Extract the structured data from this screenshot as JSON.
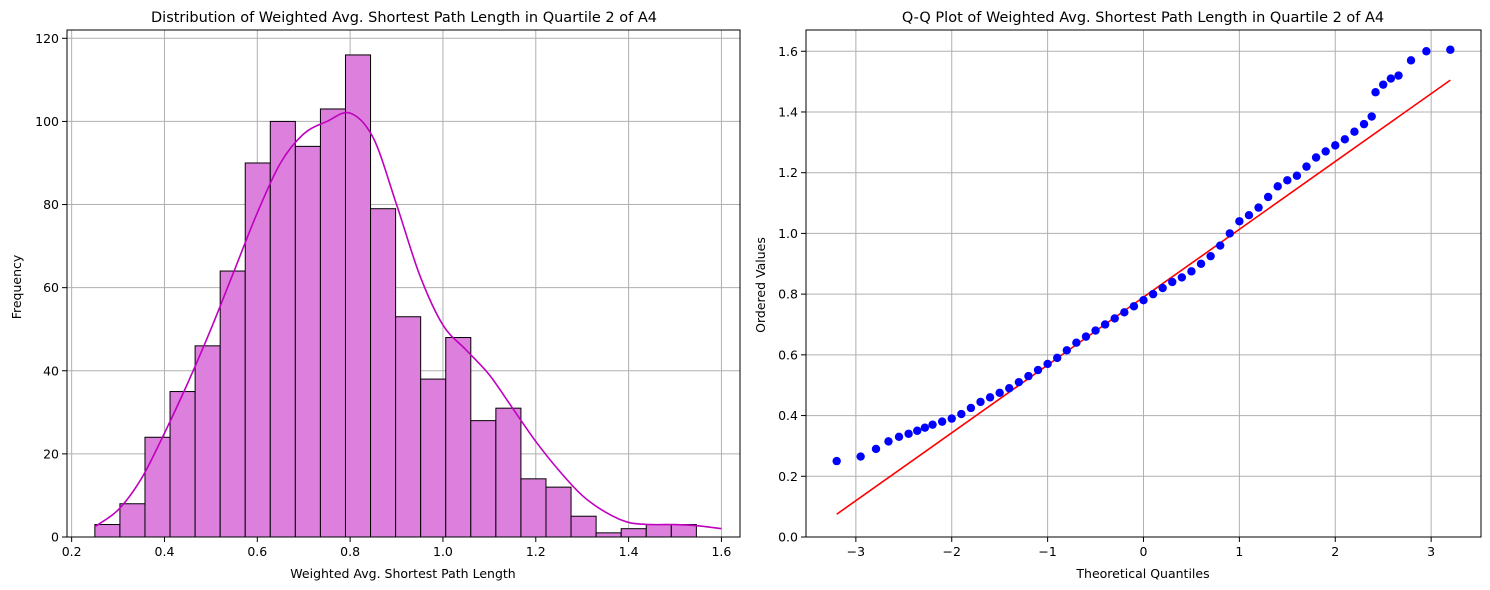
{
  "chart_data": [
    {
      "type": "bar",
      "title": "Distribution of Weighted Avg. Shortest Path Length in Quartile 2 of A4",
      "xlabel": "Weighted Avg. Shortest Path Length",
      "ylabel": "Frequency",
      "xlim": [
        0.19,
        1.64
      ],
      "ylim": [
        0,
        122
      ],
      "xticks": [
        0.2,
        0.4,
        0.6,
        0.8,
        1.0,
        1.2,
        1.4,
        1.6
      ],
      "xtick_labels": [
        "0.2",
        "0.4",
        "0.6",
        "0.8",
        "1.0",
        "1.2",
        "1.4",
        "1.6"
      ],
      "yticks": [
        0,
        20,
        40,
        60,
        80,
        100,
        120
      ],
      "ytick_labels": [
        "0",
        "20",
        "40",
        "60",
        "80",
        "100",
        "120"
      ],
      "grid": true,
      "bin_start": 0.25,
      "bin_width": 0.054,
      "values": [
        3,
        8,
        24,
        35,
        46,
        64,
        90,
        100,
        94,
        103,
        116,
        79,
        53,
        38,
        48,
        28,
        31,
        14,
        12,
        5,
        1,
        2,
        3,
        3
      ],
      "kde": {
        "x": [
          0.25,
          0.3,
          0.35,
          0.4,
          0.45,
          0.5,
          0.55,
          0.6,
          0.65,
          0.7,
          0.75,
          0.8,
          0.85,
          0.9,
          0.95,
          1.0,
          1.05,
          1.1,
          1.15,
          1.2,
          1.25,
          1.3,
          1.35,
          1.4,
          1.45,
          1.5,
          1.55,
          1.6
        ],
        "y": [
          2.5,
          6.5,
          14,
          25,
          37,
          50,
          64,
          78,
          90,
          97,
          100,
          102,
          96,
          80,
          63,
          51,
          45,
          39,
          31,
          23,
          16,
          10,
          6,
          3.5,
          3,
          3,
          2.7,
          2
        ]
      },
      "colors": {
        "bar": "#dd7fdd",
        "edge": "#000000",
        "kde": "#bf00bf"
      }
    },
    {
      "type": "scatter",
      "title": "Q-Q Plot of Weighted Avg. Shortest Path Length in Quartile 2 of A4",
      "xlabel": "Theoretical Quantiles",
      "ylabel": "Ordered Values",
      "xlim": [
        -3.52,
        3.52
      ],
      "ylim": [
        0,
        1.67
      ],
      "xticks": [
        -3,
        -2,
        -1,
        0,
        1,
        2,
        3
      ],
      "xtick_labels": [
        "−3",
        "−2",
        "−1",
        "0",
        "1",
        "2",
        "3"
      ],
      "yticks": [
        0.0,
        0.2,
        0.4,
        0.6,
        0.8,
        1.0,
        1.2,
        1.4,
        1.6
      ],
      "ytick_labels": [
        "0.0",
        "0.2",
        "0.4",
        "0.6",
        "0.8",
        "1.0",
        "1.2",
        "1.4",
        "1.6"
      ],
      "grid": true,
      "points_x": [
        -3.2,
        -2.95,
        -2.79,
        -2.66,
        -2.55,
        -2.45,
        -2.36,
        -2.28,
        -2.2,
        -2.1,
        -2.0,
        -1.9,
        -1.8,
        -1.7,
        -1.6,
        -1.5,
        -1.4,
        -1.3,
        -1.2,
        -1.1,
        -1.0,
        -0.9,
        -0.8,
        -0.7,
        -0.6,
        -0.5,
        -0.4,
        -0.3,
        -0.2,
        -0.1,
        0.0,
        0.1,
        0.2,
        0.3,
        0.4,
        0.5,
        0.6,
        0.7,
        0.8,
        0.9,
        1.0,
        1.1,
        1.2,
        1.3,
        1.4,
        1.5,
        1.6,
        1.7,
        1.8,
        1.9,
        2.0,
        2.1,
        2.2,
        2.3,
        2.38,
        2.42,
        2.5,
        2.58,
        2.66,
        2.79,
        2.95,
        3.2
      ],
      "points_y": [
        0.25,
        0.265,
        0.29,
        0.315,
        0.33,
        0.34,
        0.35,
        0.36,
        0.37,
        0.38,
        0.39,
        0.405,
        0.425,
        0.445,
        0.46,
        0.475,
        0.49,
        0.51,
        0.53,
        0.55,
        0.57,
        0.59,
        0.615,
        0.64,
        0.66,
        0.68,
        0.7,
        0.72,
        0.74,
        0.76,
        0.78,
        0.8,
        0.82,
        0.84,
        0.855,
        0.875,
        0.9,
        0.925,
        0.96,
        1.0,
        1.04,
        1.06,
        1.085,
        1.12,
        1.155,
        1.175,
        1.19,
        1.22,
        1.25,
        1.27,
        1.29,
        1.31,
        1.335,
        1.36,
        1.385,
        1.465,
        1.49,
        1.51,
        1.52,
        1.57,
        1.6,
        1.605
      ],
      "fit_line": {
        "x": [
          -3.2,
          3.2
        ],
        "y": [
          0.075,
          1.505
        ]
      },
      "colors": {
        "points": "#0000ff",
        "line": "#ff0000"
      }
    }
  ]
}
